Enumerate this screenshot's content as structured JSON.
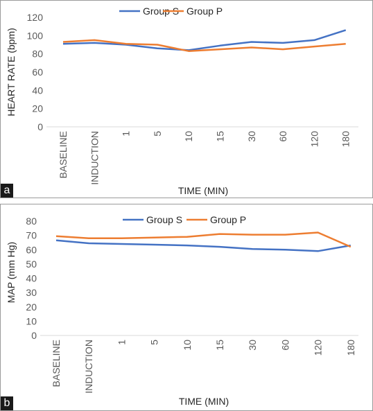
{
  "colors": {
    "group_s": "#4472C4",
    "group_p": "#ED7D31"
  },
  "chart_data": [
    {
      "type": "line",
      "panel_label": "a",
      "title": "",
      "xlabel": "TIME (MIN)",
      "ylabel": "HEART RATE (bpm)",
      "ylim": [
        0,
        120
      ],
      "yticks": [
        0,
        20,
        40,
        60,
        80,
        100,
        120
      ],
      "categories": [
        "BASELINE",
        "INDUCTION",
        "1",
        "5",
        "10",
        "15",
        "30",
        "60",
        "120",
        "180"
      ],
      "legend_position": "top",
      "series": [
        {
          "name": "Group S",
          "values": [
            91,
            92,
            90,
            86,
            84,
            89,
            93,
            92,
            95,
            106
          ]
        },
        {
          "name": "Group P",
          "values": [
            93,
            95,
            91,
            90,
            83,
            85,
            87,
            85,
            88,
            91
          ]
        }
      ]
    },
    {
      "type": "line",
      "panel_label": "b",
      "title": "",
      "xlabel": "TIME (MIN)",
      "ylabel": "MAP (mm Hg)",
      "ylim": [
        0,
        80
      ],
      "yticks": [
        0,
        10,
        20,
        30,
        40,
        50,
        60,
        70,
        80
      ],
      "categories": [
        "BASELINE",
        "INDUCTION",
        "1",
        "5",
        "10",
        "15",
        "30",
        "60",
        "120",
        "180"
      ],
      "legend_position": "top",
      "series": [
        {
          "name": "Group S",
          "values": [
            66.5,
            64.5,
            64,
            63.5,
            63,
            62,
            60.5,
            60,
            59,
            63
          ]
        },
        {
          "name": "Group P",
          "values": [
            69.5,
            68,
            68,
            68.5,
            69,
            71,
            70.5,
            70.5,
            72,
            62
          ]
        }
      ]
    }
  ]
}
